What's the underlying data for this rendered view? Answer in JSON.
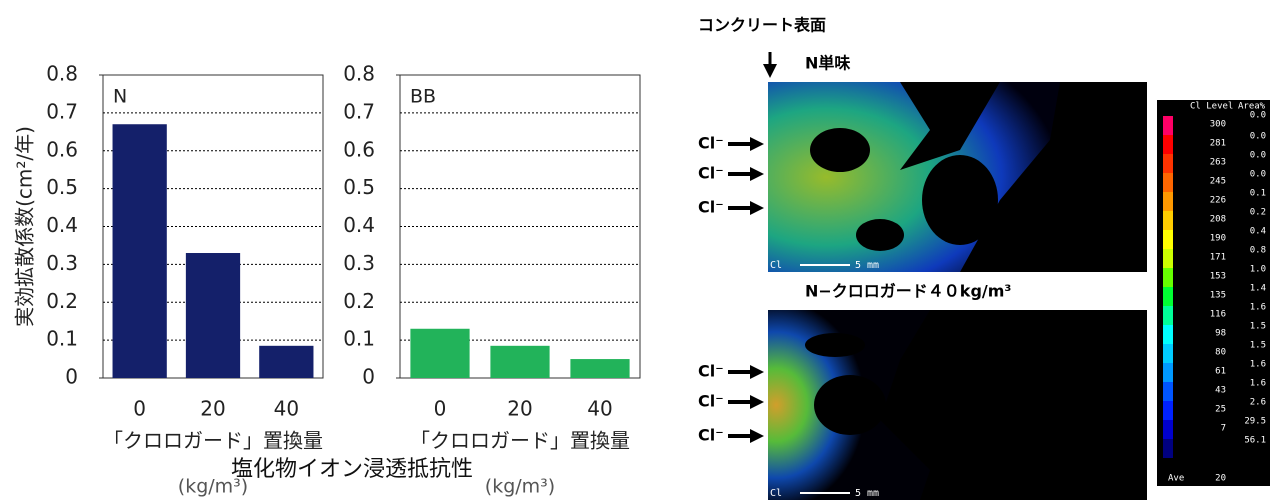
{
  "chart_data": [
    {
      "type": "bar",
      "title": "N",
      "y_label": "実効拡散係数(cm²/年)",
      "categories": [
        "0",
        "20",
        "40"
      ],
      "values": [
        0.67,
        0.33,
        0.085
      ],
      "color": "#14206a",
      "ylim": [
        0,
        0.8
      ],
      "yticks": [
        0,
        0.1,
        0.2,
        0.3,
        0.4,
        0.5,
        0.6,
        0.7,
        0.8
      ],
      "grid": true,
      "x_label": "「クロロガード」置換量",
      "x_unit": "(kg/m³)"
    },
    {
      "type": "bar",
      "title": "BB",
      "categories": [
        "0",
        "20",
        "40"
      ],
      "values": [
        0.13,
        0.085,
        0.05
      ],
      "color": "#22b35a",
      "ylim": [
        0,
        0.8
      ],
      "yticks": [
        0,
        0.1,
        0.2,
        0.3,
        0.4,
        0.5,
        0.6,
        0.7,
        0.8
      ],
      "grid": true,
      "x_label": "「クロロガード」置換量",
      "x_unit": "(kg/m³)"
    }
  ],
  "caption": "塩化物イオン浸透抵抗性",
  "images": {
    "surface_label": "コンクリート表面",
    "ion_label": "Cl⁻",
    "element": "Cl",
    "scale_label": "5 mm",
    "panels": [
      {
        "title": "N単味"
      },
      {
        "title": "N−クロロガード４０kg/m³"
      }
    ]
  },
  "color_scale": {
    "level_header": "Cl Level",
    "area_header": "Area%",
    "levels": [
      "300",
      "281",
      "263",
      "245",
      "226",
      "208",
      "190",
      "171",
      "153",
      "135",
      "116",
      "98",
      "80",
      "61",
      "43",
      "25",
      "7"
    ],
    "areas": [
      "0.0",
      "0.0",
      "0.0",
      "0.0",
      "0.1",
      "0.2",
      "0.4",
      "0.8",
      "1.0",
      "1.4",
      "1.6",
      "1.5",
      "1.5",
      "1.6",
      "1.6",
      "2.6",
      "29.5",
      "56.1"
    ],
    "colors": [
      "#ff0066",
      "#ff0000",
      "#ff3300",
      "#ff6600",
      "#ff9900",
      "#ffcc00",
      "#ffff00",
      "#ccff00",
      "#66ff00",
      "#00ff33",
      "#00ff99",
      "#00ffff",
      "#00ccff",
      "#0099ff",
      "#0055ff",
      "#0022ff",
      "#0000cc",
      "#000080"
    ],
    "ave_label": "Ave",
    "ave_value": "20"
  }
}
